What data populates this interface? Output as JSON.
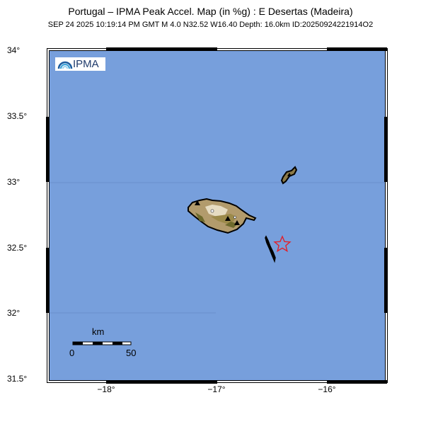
{
  "title": "Portugal – IPMA Peak Accel. Map (in %g) : E  Desertas (Madeira)",
  "subtitle": "SEP 24 2025 10:19:14 PM GMT   M 4.0   N32.52 W16.40   Depth: 16.0km   ID:20250924221914O2",
  "logo_text": "IPMA",
  "map": {
    "lat_labels": [
      "34°",
      "33.5°",
      "33°",
      "32.5°",
      "32°",
      "31.5°"
    ],
    "lon_labels": [
      "−18°",
      "−17°",
      "−16°"
    ],
    "extent": {
      "lon_min": -18.55,
      "lon_max": -15.45,
      "lat_min": 31.5,
      "lat_max": 34.0
    },
    "epicenter": {
      "lat": 32.52,
      "lon": -16.4
    },
    "colors": {
      "ocean": "#779fdc",
      "epicenter": "#e0202a",
      "frame": "#000000"
    }
  },
  "scale_bar": {
    "label": "km",
    "ticks": [
      "0",
      "50"
    ]
  }
}
